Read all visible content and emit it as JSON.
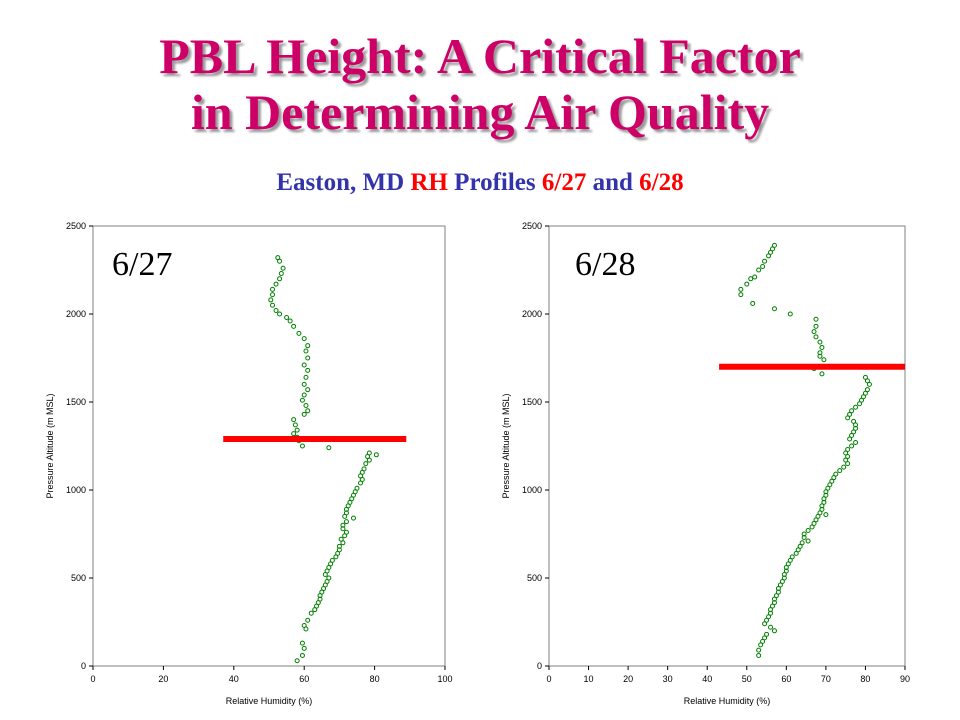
{
  "title": {
    "line1": "PBL Height: A Critical Factor",
    "line2": "in Determining Air Quality"
  },
  "subtitle": {
    "part1": "Easton, MD ",
    "part2": "RH",
    "part3": " Profiles ",
    "part4": "6/27",
    "part5": " and ",
    "part6": "6/28"
  },
  "colors": {
    "title": "#cc0066",
    "subtitle_blue": "#3333aa",
    "subtitle_red": "#ff0000",
    "points": "#008000",
    "pbl_line": "#ff0000"
  },
  "chart_data": [
    {
      "type": "scatter",
      "panel_label": "6/27",
      "xlabel": "Relative Humidity (%)",
      "ylabel": "Pressure Altitude (m MSL)",
      "xlim": [
        0,
        100
      ],
      "ylim": [
        0,
        2500
      ],
      "xticks": [
        0,
        20,
        40,
        60,
        80,
        100
      ],
      "yticks": [
        0,
        500,
        1000,
        1500,
        2000,
        2500
      ],
      "grid": false,
      "pbl_line": {
        "y": 1290,
        "x_range": [
          37,
          89
        ]
      },
      "points": [
        [
          52.5,
          2320
        ],
        [
          53,
          2300
        ],
        [
          54,
          2260
        ],
        [
          53.5,
          2230
        ],
        [
          53,
          2200
        ],
        [
          52,
          2170
        ],
        [
          51,
          2140
        ],
        [
          51,
          2110
        ],
        [
          50.5,
          2080
        ],
        [
          51,
          2050
        ],
        [
          52,
          2020
        ],
        [
          53,
          2000
        ],
        [
          55,
          1980
        ],
        [
          56,
          1960
        ],
        [
          57,
          1930
        ],
        [
          58.5,
          1890
        ],
        [
          60,
          1860
        ],
        [
          61,
          1820
        ],
        [
          60.5,
          1790
        ],
        [
          61,
          1750
        ],
        [
          60,
          1710
        ],
        [
          61,
          1680
        ],
        [
          60.5,
          1640
        ],
        [
          60,
          1600
        ],
        [
          61,
          1570
        ],
        [
          60,
          1540
        ],
        [
          59.5,
          1510
        ],
        [
          60.5,
          1480
        ],
        [
          61,
          1450
        ],
        [
          60,
          1430
        ],
        [
          57,
          1400
        ],
        [
          57.5,
          1370
        ],
        [
          58,
          1340
        ],
        [
          57,
          1320
        ],
        [
          58,
          1300
        ],
        [
          58.5,
          1280
        ],
        [
          59.5,
          1250
        ],
        [
          67,
          1240
        ],
        [
          80.5,
          1200
        ],
        [
          78.5,
          1210
        ],
        [
          78,
          1190
        ],
        [
          78.5,
          1170
        ],
        [
          77.5,
          1150
        ],
        [
          77,
          1120
        ],
        [
          76.5,
          1100
        ],
        [
          76,
          1080
        ],
        [
          76.5,
          1060
        ],
        [
          76,
          1040
        ],
        [
          75,
          1010
        ],
        [
          74.5,
          990
        ],
        [
          74,
          970
        ],
        [
          73.5,
          950
        ],
        [
          73,
          930
        ],
        [
          72.5,
          910
        ],
        [
          72,
          890
        ],
        [
          72,
          870
        ],
        [
          71.5,
          850
        ],
        [
          74,
          840
        ],
        [
          72,
          820
        ],
        [
          71,
          800
        ],
        [
          71,
          780
        ],
        [
          72,
          760
        ],
        [
          71.5,
          740
        ],
        [
          70.5,
          720
        ],
        [
          71,
          700
        ],
        [
          70,
          680
        ],
        [
          70,
          660
        ],
        [
          69.5,
          640
        ],
        [
          69,
          620
        ],
        [
          68,
          600
        ],
        [
          67.5,
          580
        ],
        [
          67,
          560
        ],
        [
          66.5,
          540
        ],
        [
          66,
          520
        ],
        [
          67,
          500
        ],
        [
          66.5,
          480
        ],
        [
          66,
          460
        ],
        [
          65.5,
          440
        ],
        [
          65,
          420
        ],
        [
          64.5,
          400
        ],
        [
          64.5,
          380
        ],
        [
          64,
          360
        ],
        [
          63.5,
          340
        ],
        [
          63,
          320
        ],
        [
          62,
          300
        ],
        [
          61,
          260
        ],
        [
          60,
          230
        ],
        [
          60.5,
          210
        ],
        [
          59.5,
          130
        ],
        [
          60,
          100
        ],
        [
          59.5,
          60
        ],
        [
          58,
          30
        ]
      ]
    },
    {
      "type": "scatter",
      "panel_label": "6/28",
      "xlabel": "Relative Humidity (%)",
      "ylabel": "Pressure Altitude (m MSL)",
      "xlim": [
        0,
        90
      ],
      "ylim": [
        0,
        2500
      ],
      "xticks": [
        0,
        10,
        20,
        30,
        40,
        50,
        60,
        70,
        80,
        90
      ],
      "yticks": [
        0,
        500,
        1000,
        1500,
        2000,
        2500
      ],
      "grid": false,
      "pbl_line": {
        "y": 1700,
        "x_range": [
          43,
          90
        ]
      },
      "points": [
        [
          57,
          2390
        ],
        [
          56.5,
          2370
        ],
        [
          56,
          2350
        ],
        [
          55.5,
          2330
        ],
        [
          54.5,
          2300
        ],
        [
          54,
          2270
        ],
        [
          53,
          2250
        ],
        [
          52,
          2210
        ],
        [
          51,
          2200
        ],
        [
          50,
          2170
        ],
        [
          48.5,
          2140
        ],
        [
          48.5,
          2110
        ],
        [
          51.5,
          2060
        ],
        [
          57,
          2030
        ],
        [
          61,
          2000
        ],
        [
          67.5,
          1970
        ],
        [
          67.5,
          1930
        ],
        [
          67,
          1900
        ],
        [
          67.5,
          1870
        ],
        [
          68.5,
          1840
        ],
        [
          69,
          1810
        ],
        [
          68.5,
          1780
        ],
        [
          68.5,
          1760
        ],
        [
          69.5,
          1740
        ],
        [
          67,
          1690
        ],
        [
          69,
          1660
        ],
        [
          80,
          1640
        ],
        [
          80.5,
          1620
        ],
        [
          81,
          1600
        ],
        [
          80.5,
          1570
        ],
        [
          80,
          1550
        ],
        [
          79.5,
          1530
        ],
        [
          79,
          1510
        ],
        [
          78.5,
          1490
        ],
        [
          77.5,
          1470
        ],
        [
          76.5,
          1450
        ],
        [
          76,
          1430
        ],
        [
          75.5,
          1410
        ],
        [
          77,
          1390
        ],
        [
          77.5,
          1370
        ],
        [
          77.5,
          1350
        ],
        [
          77,
          1330
        ],
        [
          76.5,
          1310
        ],
        [
          76,
          1290
        ],
        [
          77.5,
          1270
        ],
        [
          76.5,
          1250
        ],
        [
          75.5,
          1230
        ],
        [
          75,
          1210
        ],
        [
          75.5,
          1190
        ],
        [
          75,
          1170
        ],
        [
          75.5,
          1150
        ],
        [
          74.5,
          1130
        ],
        [
          73.5,
          1110
        ],
        [
          72.5,
          1090
        ],
        [
          72,
          1070
        ],
        [
          71.5,
          1050
        ],
        [
          71,
          1030
        ],
        [
          70.5,
          1010
        ],
        [
          70,
          990
        ],
        [
          70,
          970
        ],
        [
          69.5,
          950
        ],
        [
          69.5,
          930
        ],
        [
          69,
          910
        ],
        [
          69,
          890
        ],
        [
          68.5,
          870
        ],
        [
          70,
          860
        ],
        [
          68,
          850
        ],
        [
          67.5,
          830
        ],
        [
          67,
          810
        ],
        [
          66.5,
          790
        ],
        [
          65.5,
          770
        ],
        [
          64.5,
          750
        ],
        [
          64.5,
          730
        ],
        [
          65.5,
          710
        ],
        [
          64,
          700
        ],
        [
          63.5,
          680
        ],
        [
          63,
          660
        ],
        [
          62.5,
          640
        ],
        [
          61.5,
          620
        ],
        [
          61,
          600
        ],
        [
          60.5,
          580
        ],
        [
          60,
          560
        ],
        [
          60,
          540
        ],
        [
          59.5,
          520
        ],
        [
          59.5,
          500
        ],
        [
          59,
          480
        ],
        [
          58.5,
          460
        ],
        [
          58,
          440
        ],
        [
          58,
          420
        ],
        [
          57.5,
          400
        ],
        [
          57,
          380
        ],
        [
          57,
          360
        ],
        [
          56.5,
          340
        ],
        [
          56,
          320
        ],
        [
          56,
          300
        ],
        [
          55.5,
          280
        ],
        [
          55,
          260
        ],
        [
          54.5,
          240
        ],
        [
          56,
          220
        ],
        [
          57,
          200
        ],
        [
          55,
          180
        ],
        [
          54.5,
          160
        ],
        [
          54,
          140
        ],
        [
          53.5,
          120
        ],
        [
          53,
          90
        ],
        [
          53,
          60
        ]
      ]
    }
  ]
}
